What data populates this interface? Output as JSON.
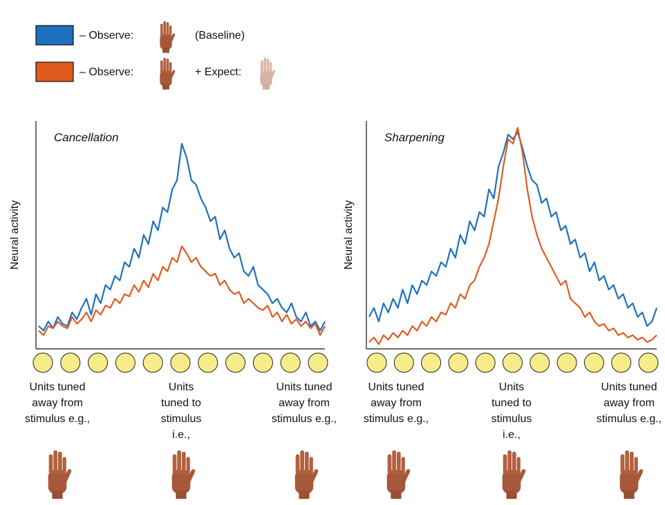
{
  "legend": [
    {
      "color": "#1f6fbf",
      "texts": [
        "– Observe:",
        "(Baseline)"
      ]
    },
    {
      "color": "#e05a1e",
      "texts": [
        "– Observe:",
        "+ Expect:"
      ]
    }
  ],
  "chart_data": [
    {
      "type": "line",
      "title": "Cancellation",
      "ylabel": "Neural activity",
      "ylim": [
        0,
        100
      ],
      "series": [
        {
          "color": "#1f6fbf",
          "values": [
            10,
            8,
            12,
            9,
            14,
            11,
            10,
            16,
            13,
            18,
            22,
            15,
            24,
            20,
            28,
            26,
            32,
            30,
            38,
            36,
            44,
            40,
            50,
            46,
            56,
            52,
            62,
            60,
            70,
            74,
            90,
            84,
            74,
            72,
            66,
            62,
            56,
            58,
            48,
            52,
            44,
            40,
            42,
            34,
            32,
            36,
            28,
            26,
            24,
            20,
            22,
            18,
            16,
            20,
            14,
            12,
            16,
            10,
            12,
            8,
            12
          ]
        },
        {
          "color": "#e05a1e",
          "values": [
            8,
            6,
            10,
            9,
            12,
            10,
            9,
            14,
            11,
            13,
            16,
            12,
            17,
            15,
            19,
            18,
            22,
            20,
            24,
            23,
            28,
            25,
            30,
            27,
            33,
            30,
            36,
            34,
            40,
            38,
            45,
            42,
            38,
            40,
            36,
            34,
            32,
            33,
            28,
            30,
            26,
            24,
            25,
            20,
            22,
            20,
            18,
            17,
            19,
            14,
            16,
            12,
            15,
            11,
            13,
            10,
            12,
            9,
            11,
            6,
            10
          ]
        }
      ],
      "unit_labels": [
        [
          "Units tuned",
          "away from",
          "stimulus e.g.,"
        ],
        [
          "Units",
          "tuned to",
          "stimulus",
          "i.e.,"
        ],
        [
          "Units tuned",
          "away from",
          "stimulus e.g.,"
        ]
      ]
    },
    {
      "type": "line",
      "title": "Sharpening",
      "ylabel": "Neural activity",
      "ylim": [
        0,
        100
      ],
      "series": [
        {
          "color": "#1f6fbf",
          "values": [
            14,
            18,
            12,
            20,
            16,
            22,
            18,
            26,
            20,
            28,
            24,
            30,
            28,
            34,
            32,
            38,
            36,
            44,
            40,
            50,
            46,
            56,
            52,
            60,
            58,
            70,
            66,
            80,
            86,
            94,
            92,
            95,
            88,
            80,
            74,
            72,
            64,
            66,
            58,
            60,
            52,
            54,
            46,
            48,
            40,
            42,
            34,
            38,
            30,
            32,
            26,
            28,
            22,
            24,
            18,
            20,
            14,
            16,
            10,
            12,
            18
          ]
        },
        {
          "color": "#e05a1e",
          "values": [
            3,
            5,
            2,
            6,
            4,
            7,
            5,
            8,
            6,
            10,
            8,
            12,
            10,
            14,
            12,
            16,
            15,
            20,
            18,
            24,
            22,
            28,
            30,
            36,
            40,
            46,
            56,
            66,
            80,
            92,
            90,
            97,
            86,
            70,
            58,
            50,
            44,
            40,
            36,
            32,
            28,
            30,
            22,
            20,
            18,
            14,
            16,
            12,
            10,
            11,
            8,
            9,
            6,
            7,
            5,
            6,
            4,
            5,
            3,
            4,
            6
          ]
        }
      ],
      "unit_labels": [
        [
          "Units tuned",
          "away from",
          "stimulus e.g.,"
        ],
        [
          "Units",
          "tuned to",
          "stimulus",
          "i.e.,"
        ],
        [
          "Units tuned",
          "away from",
          "stimulus e.g.,"
        ]
      ]
    }
  ]
}
